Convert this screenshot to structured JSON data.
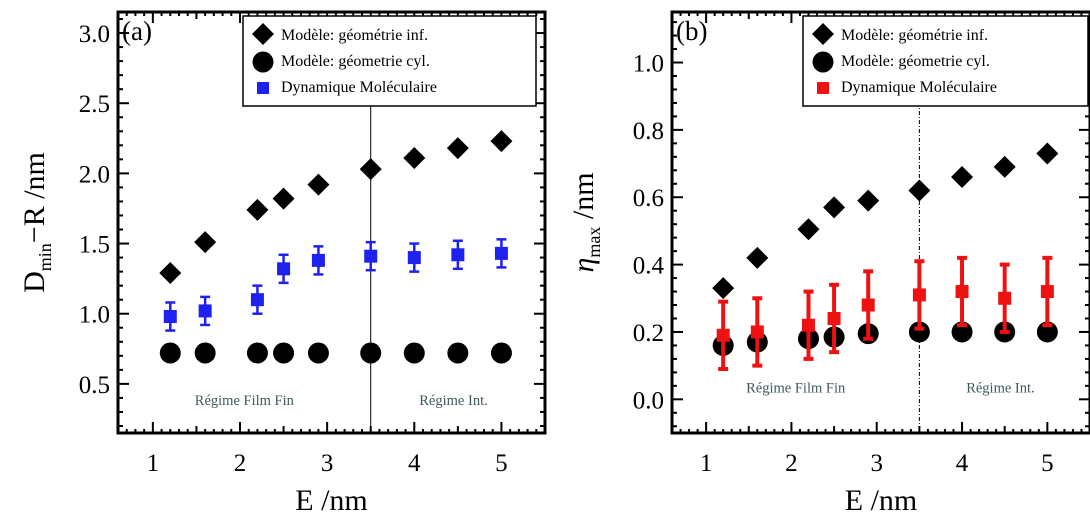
{
  "chart_data": [
    {
      "type": "scatter",
      "panel_label": "(a)",
      "xlabel": "E /nm",
      "ylabel_main": "D",
      "ylabel_sub": "min",
      "ylabel_rest": "−R /nm",
      "xlim": [
        0.6,
        5.5
      ],
      "ylim": [
        0.15,
        3.15
      ],
      "xticks": [
        1,
        2,
        3,
        4,
        5
      ],
      "yticks": [
        0.5,
        1.0,
        1.5,
        2.0,
        2.5,
        3.0
      ],
      "yticklabels": [
        "0.5",
        "1.0",
        "1.5",
        "2.0",
        "2.5",
        "3.0"
      ],
      "vline_x": 3.5,
      "regime_labels": [
        {
          "text": "Régime Film Fin",
          "x": 2.05,
          "y": 0.35
        },
        {
          "text": "Régime Int.",
          "x": 4.45,
          "y": 0.35
        }
      ],
      "legend_position": "top-right",
      "series": [
        {
          "name": "Modèle: géométrie inf.",
          "marker": "diamond",
          "color": "#000000",
          "x": [
            1.2,
            1.6,
            2.2,
            2.5,
            2.9,
            3.5,
            4.0,
            4.5,
            5.0
          ],
          "y": [
            1.29,
            1.51,
            1.74,
            1.82,
            1.92,
            2.03,
            2.11,
            2.18,
            2.23
          ]
        },
        {
          "name": "Modèle: géometrie cyl.",
          "marker": "circle",
          "color": "#000000",
          "x": [
            1.2,
            1.6,
            2.2,
            2.5,
            2.9,
            3.5,
            4.0,
            4.5,
            5.0
          ],
          "y": [
            0.72,
            0.72,
            0.72,
            0.72,
            0.72,
            0.72,
            0.72,
            0.72,
            0.72
          ]
        },
        {
          "name": "Dynamique Moléculaire",
          "marker": "square",
          "color": "#1f22ee",
          "x": [
            1.2,
            1.6,
            2.2,
            2.5,
            2.9,
            3.5,
            4.0,
            4.5,
            5.0
          ],
          "y": [
            0.98,
            1.02,
            1.1,
            1.32,
            1.38,
            1.41,
            1.4,
            1.42,
            1.43
          ],
          "err": [
            0.1,
            0.1,
            0.1,
            0.1,
            0.1,
            0.1,
            0.1,
            0.1,
            0.1
          ]
        }
      ]
    },
    {
      "type": "scatter",
      "panel_label": "(b)",
      "xlabel": "E /nm",
      "ylabel_main": "η",
      "ylabel_sub": "max",
      "ylabel_rest": " /nm",
      "xlim": [
        0.6,
        5.5
      ],
      "ylim": [
        -0.1,
        1.15
      ],
      "xticks": [
        1,
        2,
        3,
        4,
        5
      ],
      "yticks": [
        0.0,
        0.2,
        0.4,
        0.6,
        0.8,
        1.0
      ],
      "yticklabels": [
        "0.0",
        "0.2",
        "0.4",
        "0.6",
        "0.8",
        "1.0"
      ],
      "vline_x": 3.5,
      "regime_labels": [
        {
          "text": "Régime Film Fin",
          "x": 2.05,
          "y": 0.02
        },
        {
          "text": "Régime Int.",
          "x": 4.45,
          "y": 0.02
        }
      ],
      "legend_position": "top-right",
      "series": [
        {
          "name": "Modèle: géométrie inf.",
          "marker": "diamond",
          "color": "#000000",
          "x": [
            1.2,
            1.6,
            2.2,
            2.5,
            2.9,
            3.5,
            4.0,
            4.5,
            5.0
          ],
          "y": [
            0.33,
            0.42,
            0.505,
            0.57,
            0.59,
            0.62,
            0.66,
            0.69,
            0.73
          ]
        },
        {
          "name": "Modèle: géometrie cyl.",
          "marker": "circle",
          "color": "#000000",
          "x": [
            1.2,
            1.6,
            2.2,
            2.5,
            2.9,
            3.5,
            4.0,
            4.5,
            5.0
          ],
          "y": [
            0.16,
            0.17,
            0.18,
            0.185,
            0.195,
            0.2,
            0.2,
            0.2,
            0.2
          ]
        },
        {
          "name": "Dynamique Moléculaire",
          "marker": "square",
          "color": "#ee1111",
          "x": [
            1.2,
            1.6,
            2.2,
            2.5,
            2.9,
            3.5,
            4.0,
            4.5,
            5.0
          ],
          "y": [
            0.19,
            0.2,
            0.22,
            0.24,
            0.28,
            0.31,
            0.32,
            0.3,
            0.32
          ],
          "err": [
            0.1,
            0.1,
            0.1,
            0.1,
            0.1,
            0.1,
            0.1,
            0.1,
            0.1
          ]
        }
      ]
    }
  ]
}
